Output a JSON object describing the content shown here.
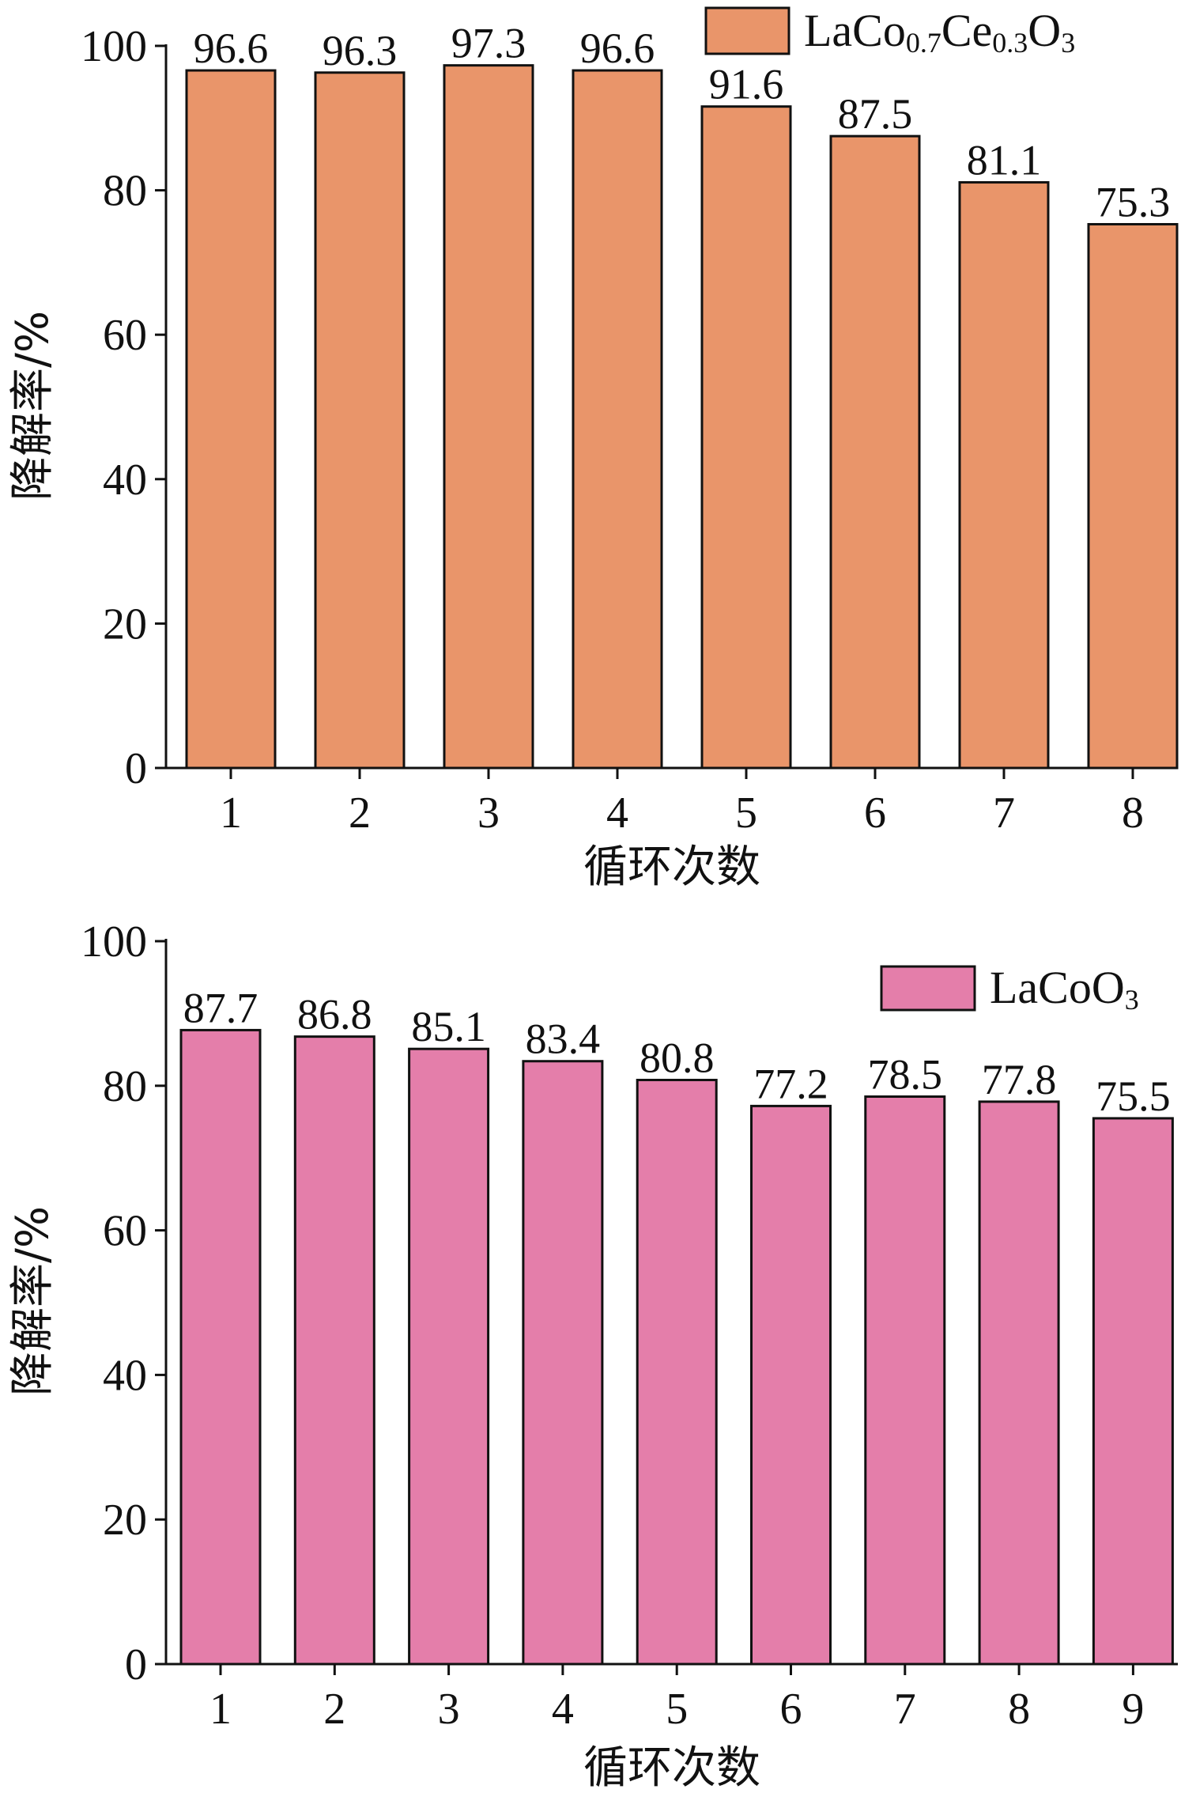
{
  "chart_data": [
    {
      "type": "bar",
      "xlabel": "循环次数",
      "ylabel": "降解率/%",
      "ylim": [
        0,
        100
      ],
      "yticks": [
        "0",
        "20",
        "40",
        "60",
        "80",
        "100"
      ],
      "categories": [
        "1",
        "2",
        "3",
        "4",
        "5",
        "6",
        "7",
        "8"
      ],
      "values": [
        96.6,
        96.3,
        97.3,
        96.6,
        91.6,
        87.5,
        81.1,
        75.3
      ],
      "labels": [
        "96.6",
        "96.3",
        "97.3",
        "96.6",
        "91.6",
        "87.5",
        "81.1",
        "75.3"
      ],
      "legend": {
        "main": "LaCo",
        "sub1": "0.7",
        "mid": "Ce",
        "sub2": "0.3",
        "end": "O",
        "sub3": "3",
        "position": "top-right"
      },
      "color": "#E9956A",
      "grid": false
    },
    {
      "type": "bar",
      "xlabel": "循环次数",
      "ylabel": "降解率/%",
      "ylim": [
        0,
        100
      ],
      "yticks": [
        "0",
        "20",
        "40",
        "60",
        "80",
        "100"
      ],
      "categories": [
        "1",
        "2",
        "3",
        "4",
        "5",
        "6",
        "7",
        "8",
        "9"
      ],
      "values": [
        87.7,
        86.8,
        85.1,
        83.4,
        80.8,
        77.2,
        78.5,
        77.8,
        75.5
      ],
      "labels": [
        "87.7",
        "86.8",
        "85.1",
        "83.4",
        "80.8",
        "77.2",
        "78.5",
        "77.8",
        "75.5"
      ],
      "legend": {
        "main": "LaCoO",
        "sub1": "3",
        "position": "top-right"
      },
      "color": "#E47EAA",
      "grid": false
    }
  ]
}
